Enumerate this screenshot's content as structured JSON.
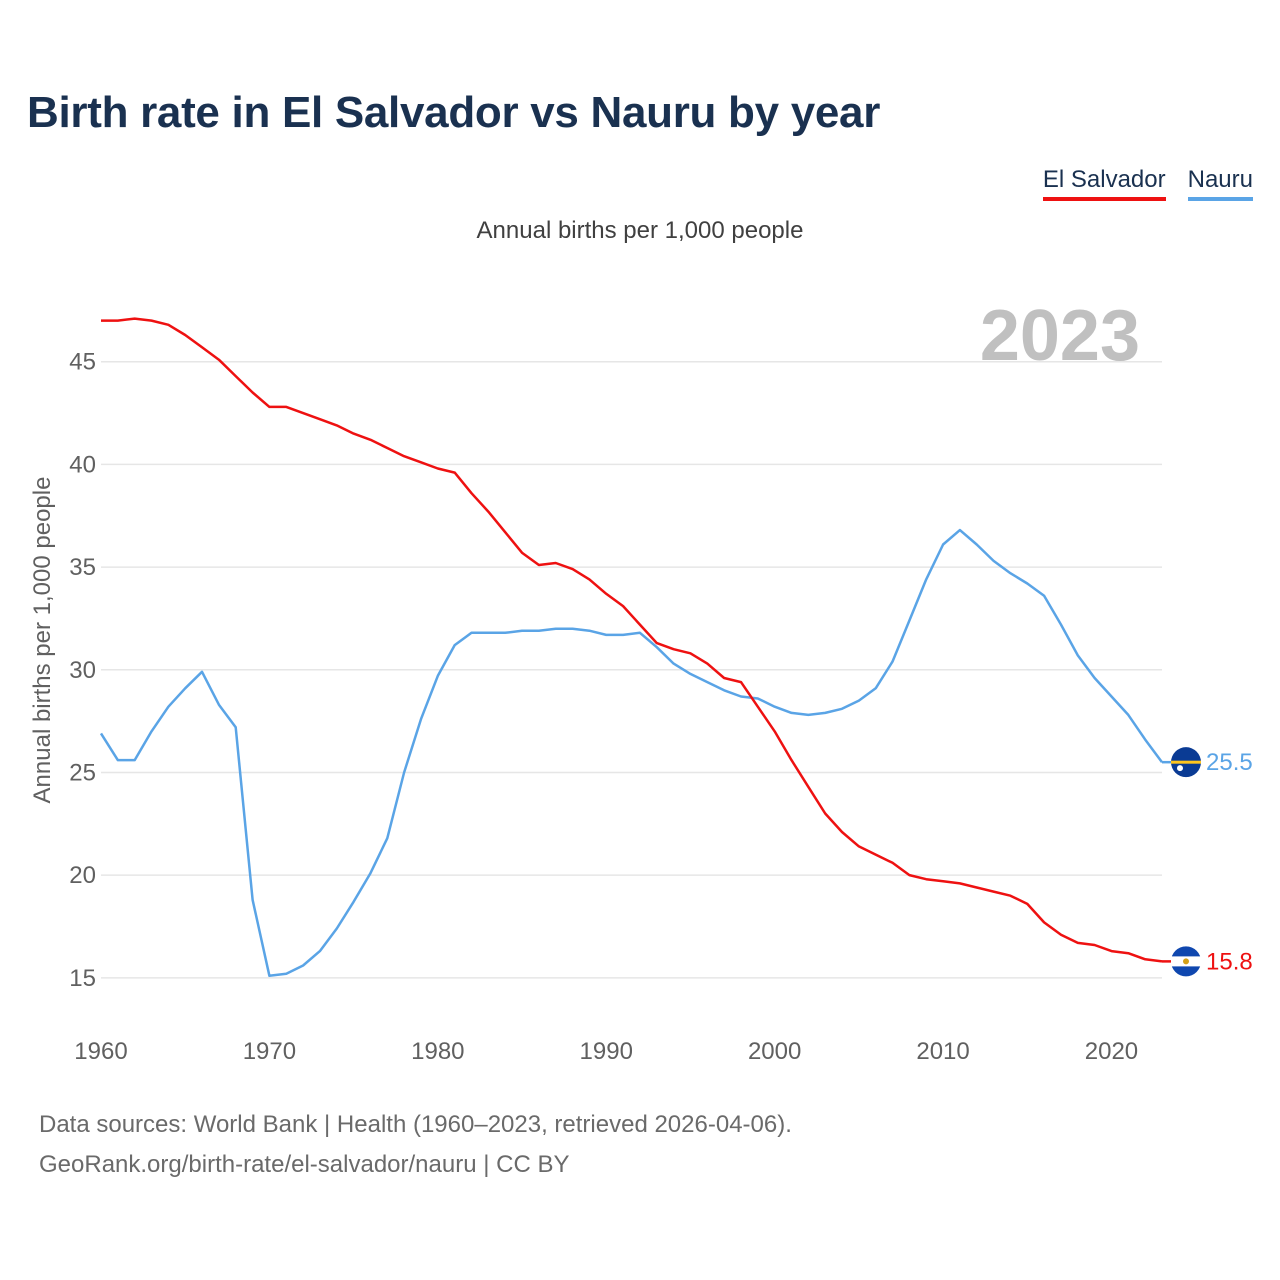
{
  "title": "Birth rate in El Salvador vs Nauru by year",
  "subtitle": "Annual births per 1,000 people",
  "legend": [
    "El Salvador",
    "Nauru"
  ],
  "footer": {
    "line1": "Data sources: World Bank | Health (1960–2023, retrieved 2026-04-06).",
    "line2": "GeoRank.org/birth-rate/el-salvador/nauru | CC BY"
  },
  "colors": {
    "el_salvador": "#ee1111",
    "nauru": "#5aa4e6",
    "title": "#1a3150",
    "year": "#c0c0c0",
    "grid": "#e6e6e6",
    "tick": "#606060"
  },
  "chart_data": {
    "type": "line",
    "title": "Birth rate in El Salvador vs Nauru by year",
    "ylabel": "Annual births per 1,000 people",
    "xlabel": "",
    "year_label": "2023",
    "xlim": [
      1960,
      2023
    ],
    "ylim": [
      12.8,
      48.2
    ],
    "x_ticks": [
      1960,
      1970,
      1980,
      1990,
      2000,
      2010,
      2020
    ],
    "y_ticks": [
      15,
      20,
      25,
      30,
      35,
      40,
      45
    ],
    "x": [
      1960,
      1961,
      1962,
      1963,
      1964,
      1965,
      1966,
      1967,
      1968,
      1969,
      1970,
      1971,
      1972,
      1973,
      1974,
      1975,
      1976,
      1977,
      1978,
      1979,
      1980,
      1981,
      1982,
      1983,
      1984,
      1985,
      1986,
      1987,
      1988,
      1989,
      1990,
      1991,
      1992,
      1993,
      1994,
      1995,
      1996,
      1997,
      1998,
      1999,
      2000,
      2001,
      2002,
      2003,
      2004,
      2005,
      2006,
      2007,
      2008,
      2009,
      2010,
      2011,
      2012,
      2013,
      2014,
      2015,
      2016,
      2017,
      2018,
      2019,
      2020,
      2021,
      2022,
      2023
    ],
    "series": [
      {
        "name": "El Salvador",
        "end_label": "15.8",
        "values": [
          47.0,
          47.0,
          47.1,
          47.0,
          46.8,
          46.3,
          45.7,
          45.1,
          44.3,
          43.5,
          42.8,
          42.8,
          42.5,
          42.2,
          41.9,
          41.5,
          41.2,
          40.8,
          40.4,
          40.1,
          39.8,
          39.6,
          38.6,
          37.7,
          36.7,
          35.7,
          35.1,
          35.2,
          34.9,
          34.4,
          33.7,
          33.1,
          32.2,
          31.3,
          31.0,
          30.8,
          30.3,
          29.6,
          29.4,
          28.2,
          27.0,
          25.6,
          24.3,
          23.0,
          22.1,
          21.4,
          21.0,
          20.6,
          20.0,
          19.8,
          19.7,
          19.6,
          19.4,
          19.2,
          19.0,
          18.6,
          17.7,
          17.1,
          16.7,
          16.6,
          16.3,
          16.2,
          15.9,
          15.8
        ]
      },
      {
        "name": "Nauru",
        "end_label": "25.5",
        "values": [
          26.9,
          25.6,
          25.6,
          27.0,
          28.2,
          29.1,
          29.9,
          28.3,
          27.2,
          18.8,
          15.1,
          15.2,
          15.6,
          16.3,
          17.4,
          18.7,
          20.1,
          21.8,
          25.0,
          27.6,
          29.7,
          31.2,
          31.8,
          31.8,
          31.8,
          31.9,
          31.9,
          32.0,
          32.0,
          31.9,
          31.7,
          31.7,
          31.8,
          31.1,
          30.3,
          29.8,
          29.4,
          29.0,
          28.7,
          28.6,
          28.2,
          27.9,
          27.8,
          27.9,
          28.1,
          28.5,
          29.1,
          30.4,
          32.4,
          34.4,
          36.1,
          36.8,
          36.1,
          35.3,
          34.7,
          34.2,
          33.6,
          32.2,
          30.7,
          29.6,
          28.7,
          27.8,
          26.6,
          25.5
        ]
      }
    ]
  }
}
